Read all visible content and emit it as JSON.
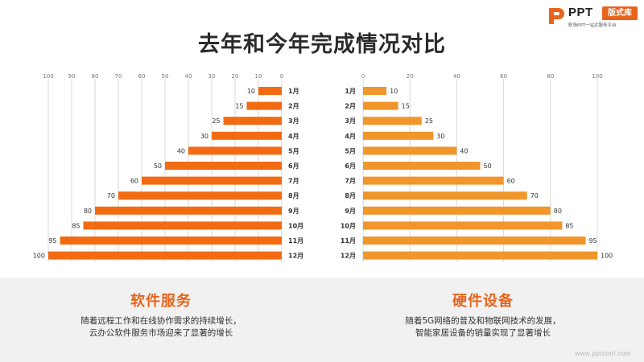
{
  "logo": {
    "brand": "PPT",
    "badge": "版式库",
    "tagline": "职场PPT一站式服务平台"
  },
  "page_title": "去年和今年完成情况对比",
  "colors": {
    "left_bar": "#f26b12",
    "right_bar": "#f0962a",
    "accent": "#e8641b",
    "grid": "#d9d9d9",
    "band": "#f1f1f1"
  },
  "chart_data": [
    {
      "type": "bar",
      "orientation": "horizontal",
      "direction": "right-to-left",
      "categories": [
        "1月",
        "2月",
        "3月",
        "4月",
        "5月",
        "6月",
        "7月",
        "8月",
        "9月",
        "10月",
        "11月",
        "12月"
      ],
      "series": [
        {
          "values": [
            10,
            15,
            25,
            30,
            40,
            50,
            60,
            70,
            80,
            85,
            95,
            100
          ]
        }
      ],
      "xlim": [
        0,
        100
      ],
      "ticks": [
        100,
        90,
        80,
        70,
        60,
        50,
        40,
        30,
        20,
        10,
        0
      ],
      "grid": true,
      "data_labels": true,
      "color": "#f26b12"
    },
    {
      "type": "bar",
      "orientation": "horizontal",
      "direction": "left-to-right",
      "categories": [
        "1月",
        "2月",
        "3月",
        "4月",
        "5月",
        "6月",
        "7月",
        "8月",
        "9月",
        "10月",
        "11月",
        "12月"
      ],
      "series": [
        {
          "values": [
            10,
            15,
            25,
            30,
            40,
            50,
            60,
            70,
            80,
            85,
            95,
            100
          ]
        }
      ],
      "xlim": [
        0,
        100
      ],
      "ticks": [
        0,
        20,
        40,
        60,
        80,
        100
      ],
      "grid": true,
      "data_labels": true,
      "color": "#f0962a"
    }
  ],
  "panels": {
    "left": {
      "title": "软件服务",
      "line1": "随着远程工作和在线协作需求的持续增长，",
      "line2": "云办公软件服务市场迎来了显著的增长"
    },
    "right": {
      "title": "硬件设备",
      "line1": "随着5G网络的普及和物联网技术的发展，",
      "line2": "智能家居设备的销量实现了显著增长"
    }
  },
  "footer_url": "www.pptcool.com"
}
